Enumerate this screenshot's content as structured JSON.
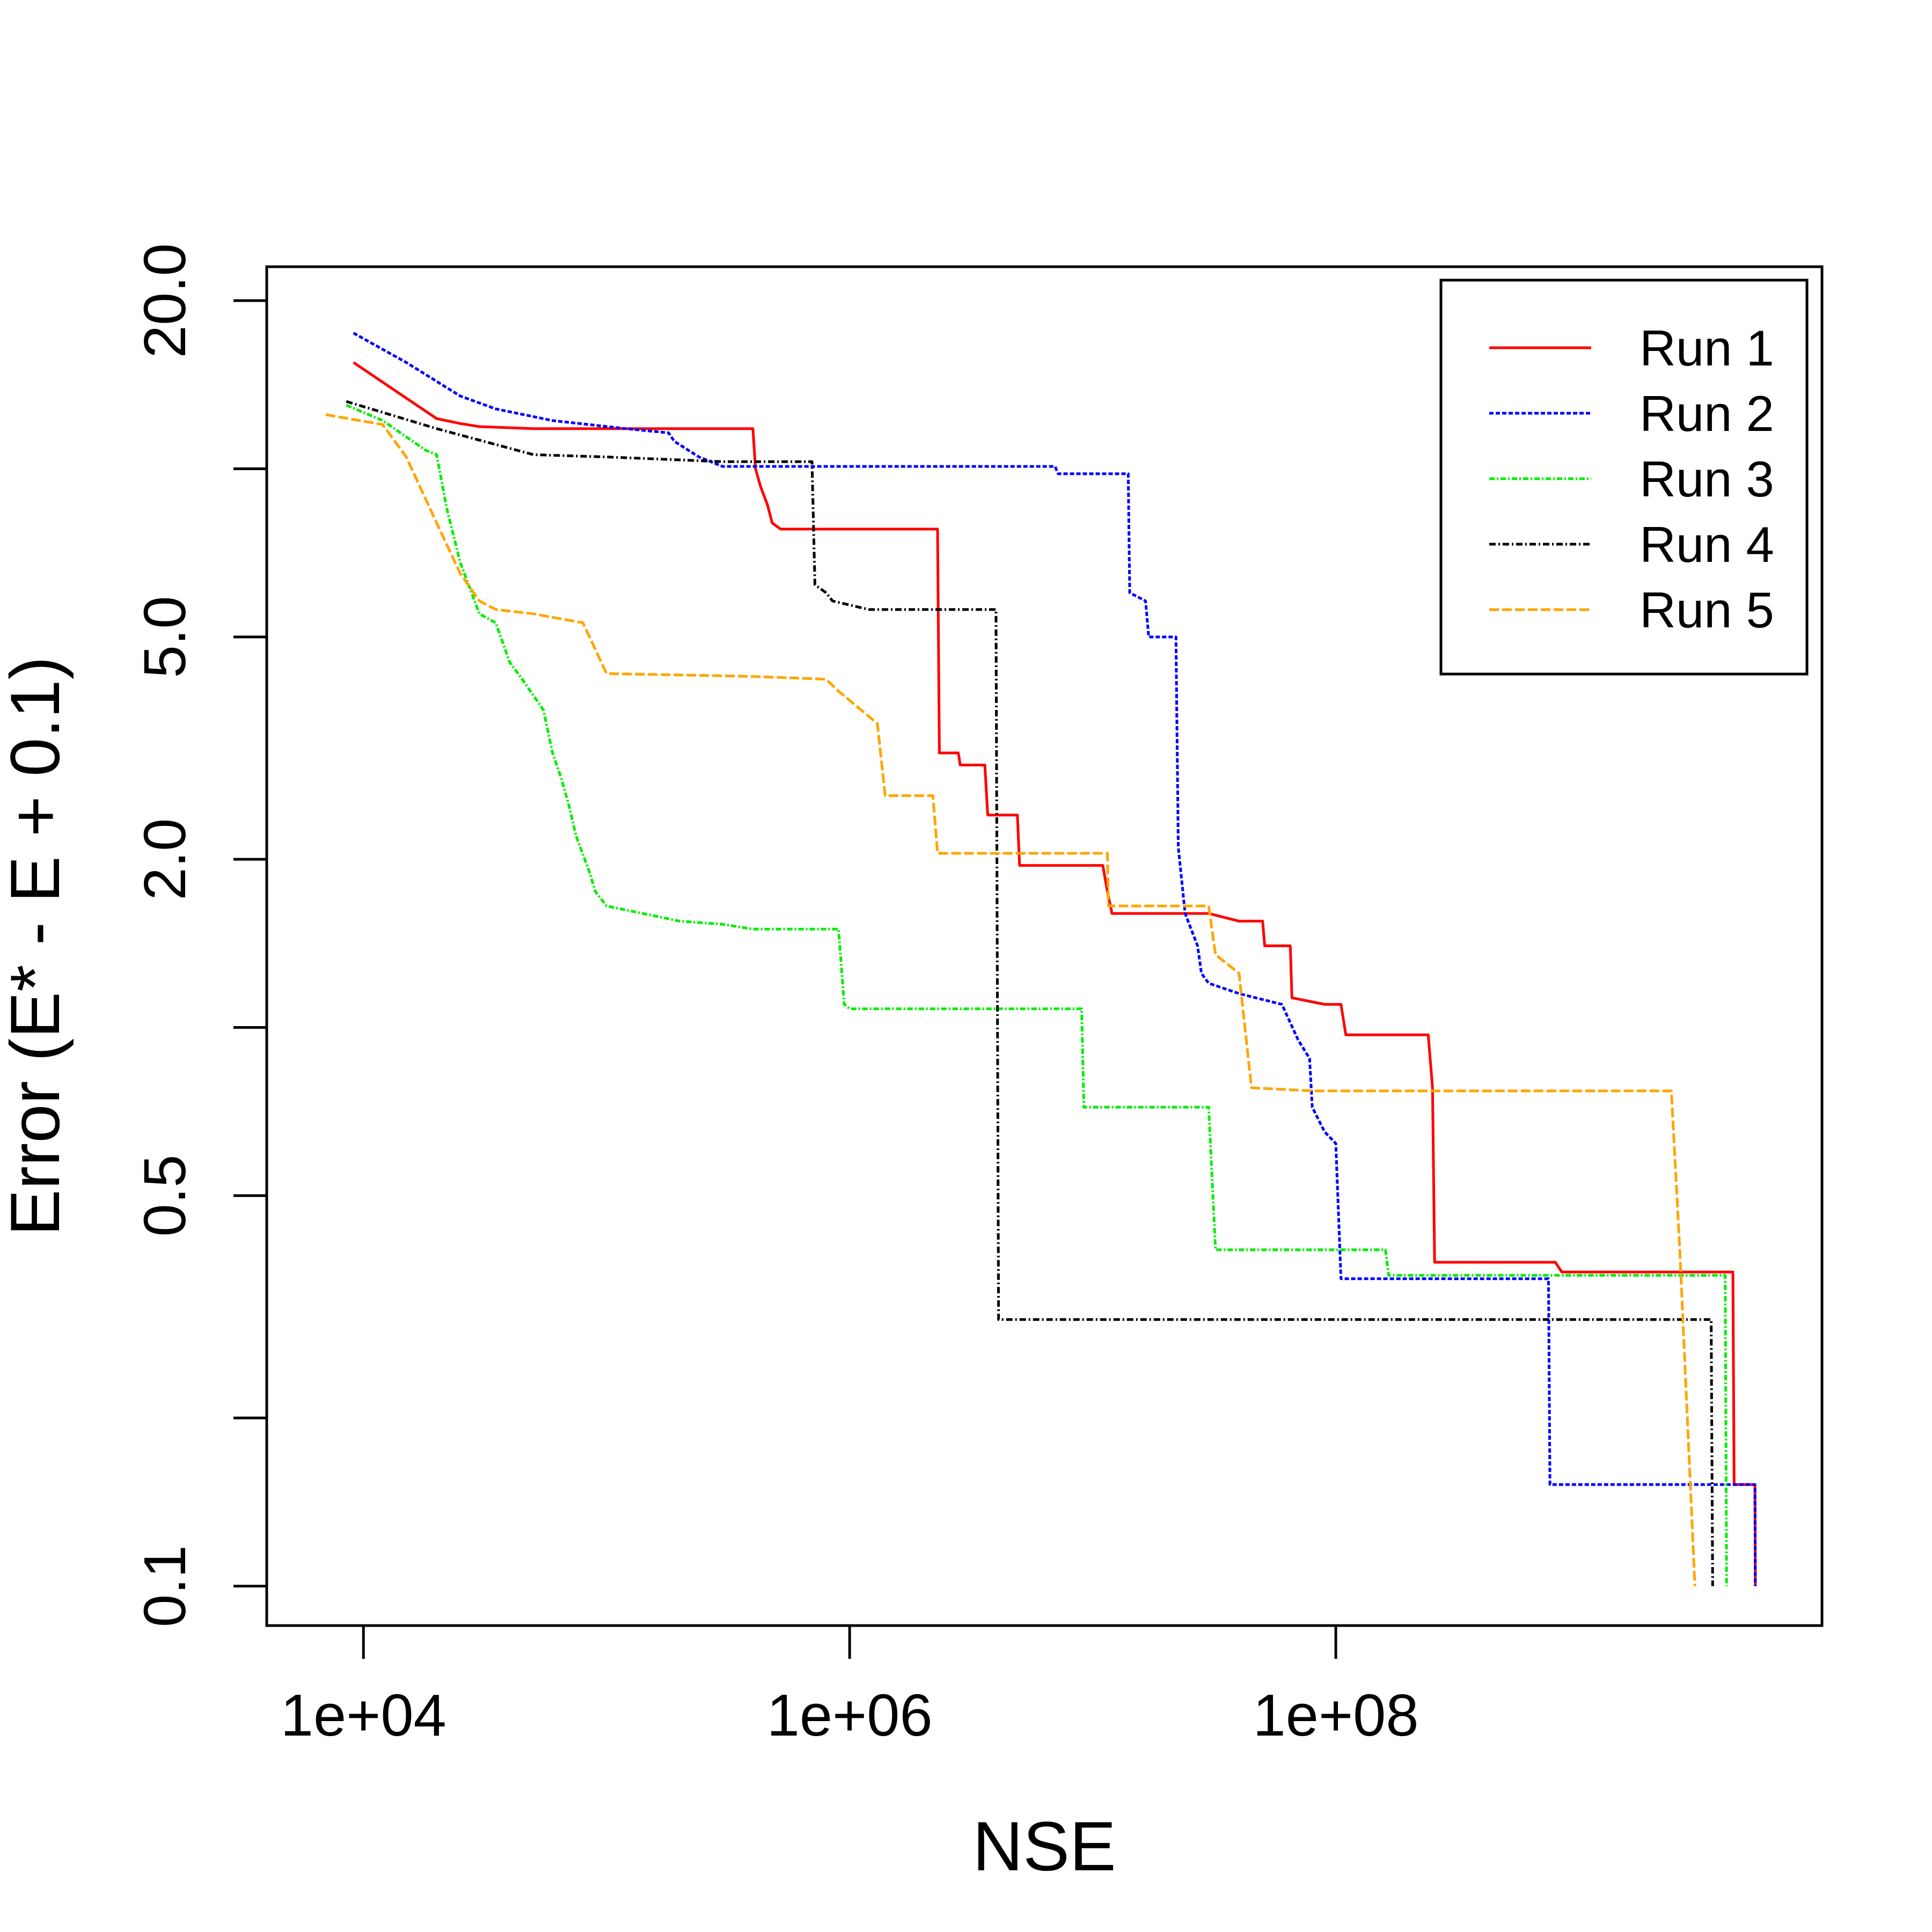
{
  "chart_data": {
    "type": "line",
    "title": "",
    "xlabel": "NSE",
    "ylabel": "Error (E* - E + 0.1)",
    "xscale": "log10",
    "yscale": "log",
    "xlim": [
      4000,
      10000000000
    ],
    "ylim": [
      0.085,
      23
    ],
    "x_ticks": [
      {
        "value": 10000,
        "label": "1e+04"
      },
      {
        "value": 1000000,
        "label": "1e+06"
      },
      {
        "value": 100000000,
        "label": "1e+08"
      }
    ],
    "y_ticks": [
      {
        "value": 0.1,
        "label": "0.1"
      },
      {
        "value": 0.2,
        "label": ""
      },
      {
        "value": 0.5,
        "label": "0.5"
      },
      {
        "value": 1.0,
        "label": ""
      },
      {
        "value": 2.0,
        "label": "2.0"
      },
      {
        "value": 5.0,
        "label": "5.0"
      },
      {
        "value": 10.0,
        "label": ""
      },
      {
        "value": 20.0,
        "label": "20.0"
      }
    ],
    "legend_position": "top-right",
    "series": [
      {
        "name": "Run 1",
        "color": "#ff0000",
        "dash": "solid",
        "points": [
          [
            9100,
            15.5
          ],
          [
            20000,
            12.3
          ],
          [
            25000,
            12.05
          ],
          [
            30000,
            11.9
          ],
          [
            50000,
            11.8
          ],
          [
            400000,
            11.8
          ],
          [
            410000,
            10.0
          ],
          [
            430000,
            9.3
          ],
          [
            460000,
            8.6
          ],
          [
            480000,
            8.0
          ],
          [
            520000,
            7.8
          ],
          [
            2300000,
            7.8
          ],
          [
            2340000,
            3.1
          ],
          [
            2800000,
            3.1
          ],
          [
            2850000,
            2.95
          ],
          [
            3600000,
            2.95
          ],
          [
            3700000,
            2.4
          ],
          [
            4900000,
            2.4
          ],
          [
            5000000,
            1.95
          ],
          [
            11000000,
            1.95
          ],
          [
            11500000,
            1.75
          ],
          [
            12000000,
            1.6
          ],
          [
            30000000,
            1.6
          ],
          [
            40000000,
            1.55
          ],
          [
            50000000,
            1.55
          ],
          [
            51000000,
            1.4
          ],
          [
            65000000,
            1.4
          ],
          [
            66000000,
            1.13
          ],
          [
            90000000,
            1.1
          ],
          [
            105000000,
            1.1
          ],
          [
            110000000,
            0.97
          ],
          [
            240000000,
            0.97
          ],
          [
            250000000,
            0.78
          ],
          [
            255000000,
            0.38
          ],
          [
            800000000,
            0.38
          ],
          [
            850000000,
            0.365
          ],
          [
            4300000000,
            0.365
          ],
          [
            4350000000,
            0.152
          ],
          [
            5300000000,
            0.152
          ],
          [
            5320000000,
            0.1
          ]
        ]
      },
      {
        "name": "Run 2",
        "color": "#0000ff",
        "dash": "8,4",
        "points": [
          [
            9100,
            17.5
          ],
          [
            15000,
            15.5
          ],
          [
            25000,
            13.5
          ],
          [
            35000,
            12.8
          ],
          [
            60000,
            12.2
          ],
          [
            120000,
            11.8
          ],
          [
            180000,
            11.6
          ],
          [
            190000,
            11.2
          ],
          [
            240000,
            10.5
          ],
          [
            300000,
            10.1
          ],
          [
            2000000,
            10.1
          ],
          [
            7000000,
            10.1
          ],
          [
            7200000,
            9.8
          ],
          [
            14000000,
            9.8
          ],
          [
            14200000,
            6.0
          ],
          [
            16500000,
            5.8
          ],
          [
            17000000,
            5.0
          ],
          [
            22000000,
            5.0
          ],
          [
            22500000,
            2.1
          ],
          [
            24000000,
            1.6
          ],
          [
            27000000,
            1.4
          ],
          [
            28000000,
            1.25
          ],
          [
            30000000,
            1.2
          ],
          [
            40000000,
            1.15
          ],
          [
            60000000,
            1.1
          ],
          [
            70000000,
            0.95
          ],
          [
            78000000,
            0.88
          ],
          [
            80000000,
            0.72
          ],
          [
            90000000,
            0.65
          ],
          [
            100000000,
            0.62
          ],
          [
            105000000,
            0.355
          ],
          [
            700000000,
            0.355
          ],
          [
            750000000,
            0.355
          ],
          [
            760000000,
            0.152
          ],
          [
            5300000000,
            0.152
          ],
          [
            5320000000,
            0.1
          ]
        ]
      },
      {
        "name": "Run 3",
        "color": "#00ee00",
        "dash": "10,4,3,4",
        "points": [
          [
            8500,
            13.0
          ],
          [
            12000,
            12.2
          ],
          [
            18000,
            10.8
          ],
          [
            20000,
            10.6
          ],
          [
            22000,
            8.5
          ],
          [
            25000,
            6.8
          ],
          [
            30000,
            5.5
          ],
          [
            35000,
            5.3
          ],
          [
            40000,
            4.5
          ],
          [
            45000,
            4.2
          ],
          [
            55000,
            3.7
          ],
          [
            60000,
            3.1
          ],
          [
            65000,
            2.8
          ],
          [
            70000,
            2.5
          ],
          [
            75000,
            2.2
          ],
          [
            85000,
            1.9
          ],
          [
            90000,
            1.75
          ],
          [
            100000,
            1.65
          ],
          [
            200000,
            1.55
          ],
          [
            300000,
            1.53
          ],
          [
            400000,
            1.5
          ],
          [
            900000,
            1.5
          ],
          [
            950000,
            1.1
          ],
          [
            1000000,
            1.08
          ],
          [
            9000000,
            1.08
          ],
          [
            9200000,
            0.72
          ],
          [
            30000000,
            0.72
          ],
          [
            32000000,
            0.4
          ],
          [
            160000000,
            0.4
          ],
          [
            165000000,
            0.36
          ],
          [
            4000000000,
            0.36
          ],
          [
            4050000000,
            0.1
          ]
        ]
      },
      {
        "name": "Run 4",
        "color": "#000000",
        "dash": "12,5,3,5",
        "points": [
          [
            8500,
            13.2
          ],
          [
            20000,
            11.8
          ],
          [
            50000,
            10.6
          ],
          [
            100000,
            10.5
          ],
          [
            300000,
            10.3
          ],
          [
            700000,
            10.3
          ],
          [
            720000,
            6.2
          ],
          [
            800000,
            6.0
          ],
          [
            850000,
            5.8
          ],
          [
            1200000,
            5.6
          ],
          [
            4000000,
            5.6
          ],
          [
            4100000,
            0.3
          ],
          [
            3500000000,
            0.3
          ],
          [
            3550000000,
            0.1
          ]
        ]
      },
      {
        "name": "Run 5",
        "color": "#ffa500",
        "dash": "18,6",
        "points": [
          [
            7000,
            12.5
          ],
          [
            12000,
            12.0
          ],
          [
            15000,
            10.5
          ],
          [
            20000,
            8.0
          ],
          [
            25000,
            6.5
          ],
          [
            30000,
            5.8
          ],
          [
            35000,
            5.6
          ],
          [
            50000,
            5.5
          ],
          [
            80000,
            5.3
          ],
          [
            100000,
            4.3
          ],
          [
            400000,
            4.25
          ],
          [
            800000,
            4.2
          ],
          [
            900000,
            4.0
          ],
          [
            1300000,
            3.5
          ],
          [
            1400000,
            2.6
          ],
          [
            2200000,
            2.6
          ],
          [
            2300000,
            2.05
          ],
          [
            11500000,
            2.05
          ],
          [
            11600000,
            1.65
          ],
          [
            30000000,
            1.65
          ],
          [
            32000000,
            1.35
          ],
          [
            40000000,
            1.25
          ],
          [
            45000000,
            0.78
          ],
          [
            80000000,
            0.77
          ],
          [
            2400000000,
            0.77
          ],
          [
            2600000000,
            0.4
          ],
          [
            3000000000,
            0.1
          ]
        ]
      }
    ]
  }
}
